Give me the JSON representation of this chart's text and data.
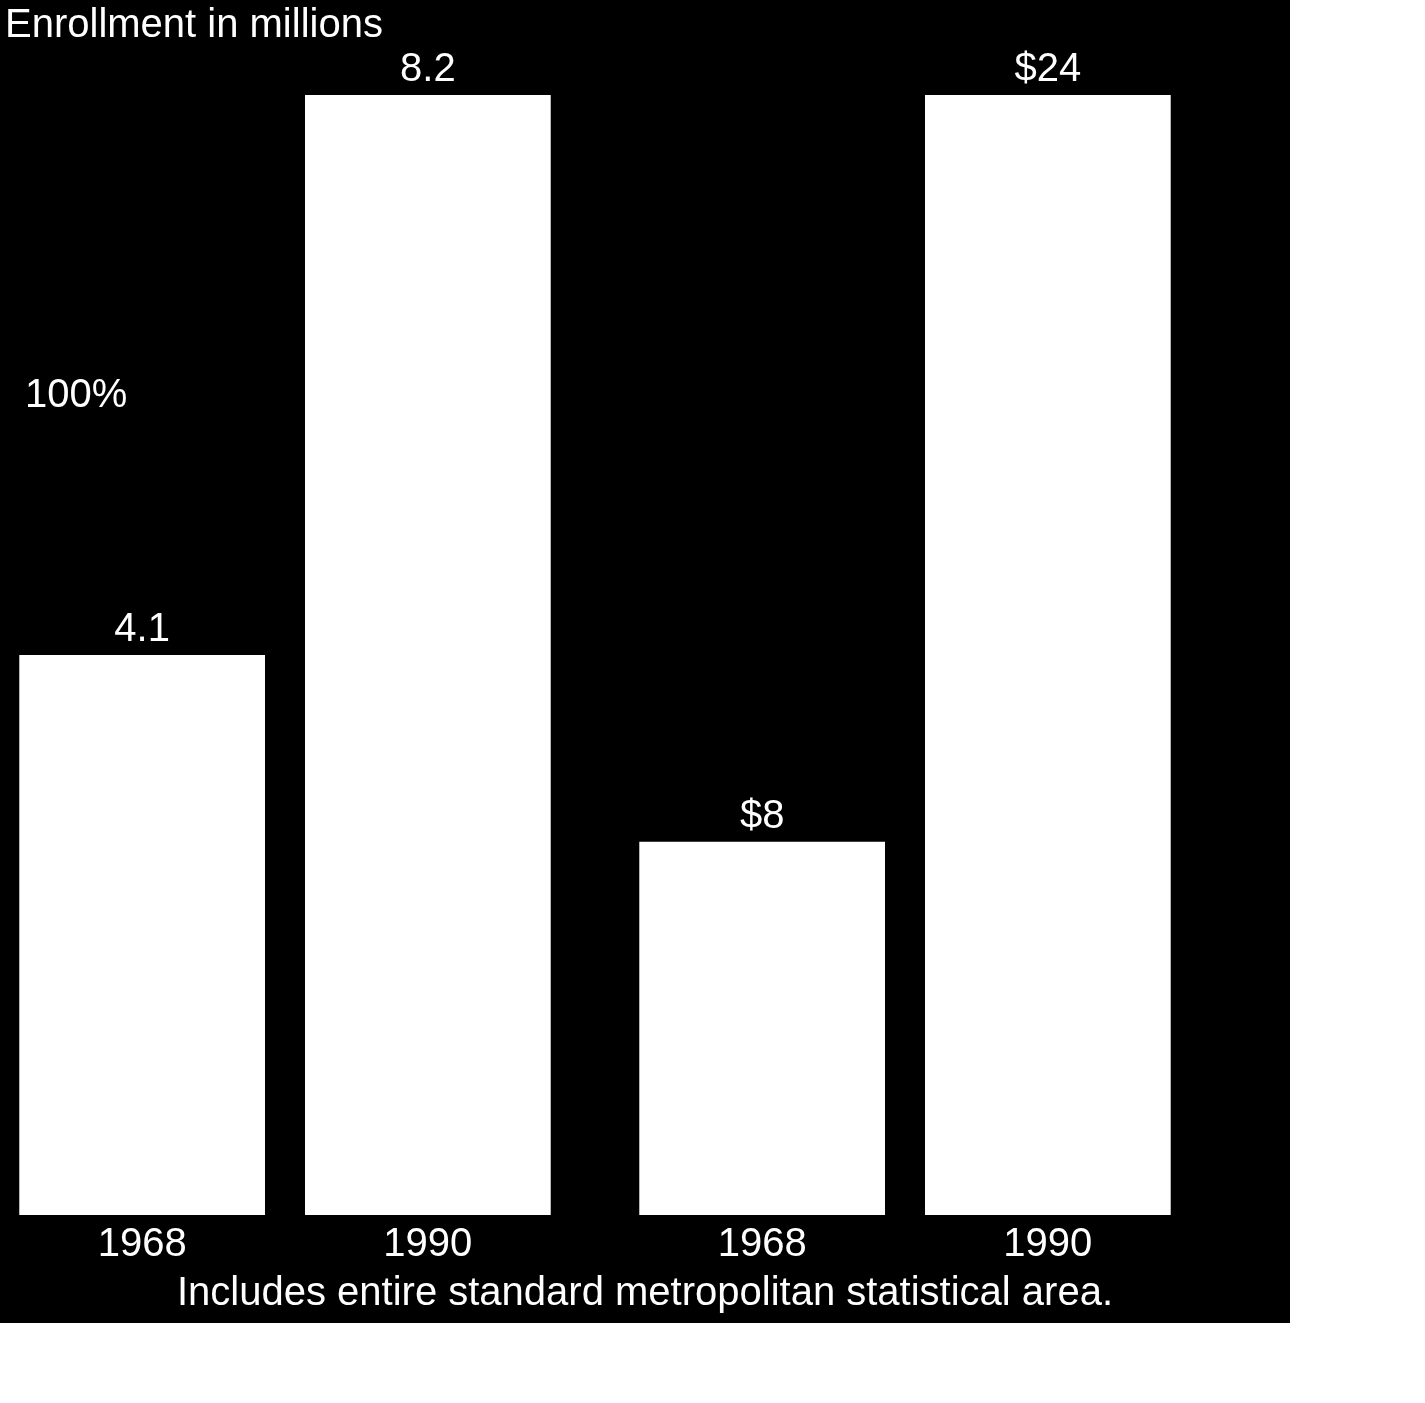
{
  "chart_data": [
    {
      "type": "bar",
      "title": "Enrollment in millions",
      "categories": [
        "1968",
        "1990"
      ],
      "values": [
        4.1,
        8.2
      ],
      "color": "#ffffff",
      "data_labels": true,
      "tick_labels": "x",
      "grid": false,
      "annotations": [
        "100%"
      ]
    },
    {
      "type": "bar",
      "categories": [
        "1968",
        "1990"
      ],
      "values": [
        8,
        24
      ],
      "value_labels": [
        "$8",
        "$24"
      ],
      "color": "#ffffff",
      "tick_labels": "x",
      "grid": false
    },
    {
      "type": "other",
      "annotations": [
        "Includes entire standard metropolitan statistical area."
      ]
    }
  ]
}
